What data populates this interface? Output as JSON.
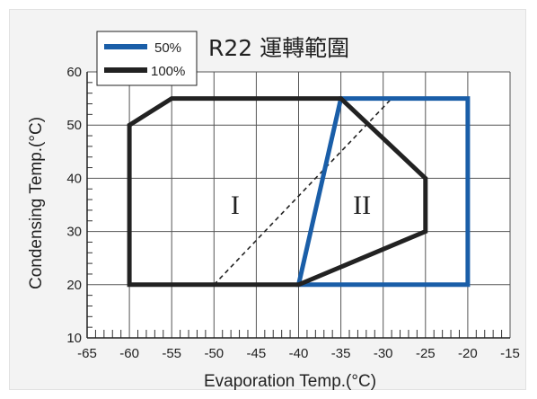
{
  "chart_data": {
    "type": "line",
    "title": "R22 運轉範圍",
    "xlabel": "Evaporation Temp.(°C)",
    "ylabel": "Condensing Temp.(°C)",
    "xlim": [
      -65,
      -15
    ],
    "ylim": [
      10,
      60
    ],
    "x_ticks": [
      -65,
      -60,
      -55,
      -50,
      -45,
      -40,
      -35,
      -30,
      -25,
      -20,
      -15
    ],
    "y_ticks": [
      10,
      20,
      30,
      40,
      50,
      60
    ],
    "x_tick_labels": [
      "-65",
      "-60",
      "-55",
      "-50",
      "-45",
      "-40",
      "-35",
      "-30",
      "-25",
      "-20",
      "-15"
    ],
    "y_tick_labels": [
      "10",
      "20",
      "30",
      "40",
      "50",
      "60"
    ],
    "grid": true,
    "legend_position": "top-left",
    "series": [
      {
        "name": "50%",
        "color": "#1a5ea8",
        "closed": true,
        "x": [
          -40,
          -20,
          -20,
          -35
        ],
        "y": [
          20,
          20,
          55,
          55
        ]
      },
      {
        "name": "100%",
        "color": "#222222",
        "closed": true,
        "x": [
          -60,
          -60,
          -55,
          -35,
          -25,
          -25,
          -40
        ],
        "y": [
          20,
          50,
          55,
          55,
          40,
          30,
          20
        ]
      }
    ],
    "dividing_line": {
      "style": "dashed",
      "x": [
        -50,
        -29
      ],
      "y": [
        20,
        55
      ]
    },
    "annotations": [
      {
        "text": "I",
        "x": -47.5,
        "y": 35
      },
      {
        "text": "II",
        "x": -32.5,
        "y": 35
      }
    ]
  }
}
